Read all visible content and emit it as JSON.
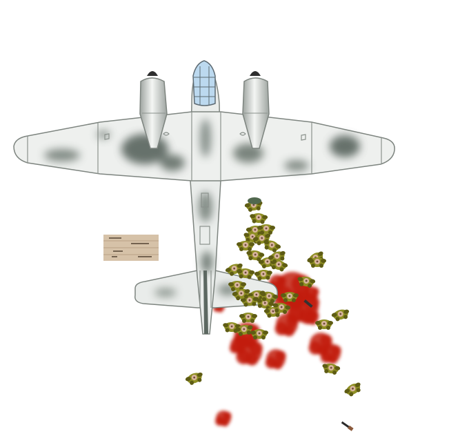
{
  "scene": {
    "background_color": "#ffffff",
    "aircraft": {
      "type": "twin-engine-bomber",
      "engine_count": 2,
      "colors": {
        "base": "#ecefec",
        "camouflage": "#66726b",
        "outline": "#7d847f",
        "canopy": "#bcd9ef",
        "spinner": "#2e2e2e"
      }
    },
    "paratroopers": {
      "count": 36,
      "colors": {
        "uniform": "#8f8f24",
        "uniform_dark": "#5e5c14",
        "skin": "#d8b59d"
      }
    },
    "blood_splatters": {
      "count": 14,
      "color": "#c21d10"
    },
    "crate": {
      "colors": {
        "wood": "#d6c2a8",
        "markings": "#4a3a2a"
      }
    },
    "dropped_items": [
      {
        "name": "rifle",
        "icon": "rifle-icon"
      },
      {
        "name": "knife",
        "icon": "knife-icon"
      }
    ],
    "helmet": {
      "color": "#51684e"
    }
  }
}
